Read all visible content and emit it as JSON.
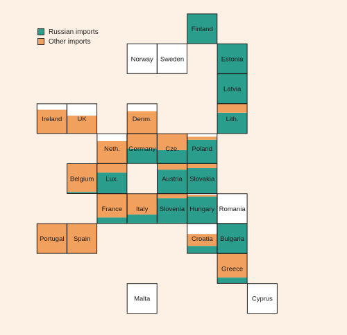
{
  "colors": {
    "russian": "#2a9d8c",
    "other": "#f2a05e",
    "none": "#ffffff",
    "border": "#1f1f1f",
    "background": "#fdf1e5"
  },
  "legend": [
    {
      "label": "Russian imports",
      "color": "#2a9d8c"
    },
    {
      "label": "Other imports",
      "color": "#f2a05e"
    }
  ],
  "chart_data": {
    "type": "grid tile map (stacked share per country)",
    "series": [
      {
        "name": "Russian imports"
      },
      {
        "name": "Other imports"
      }
    ],
    "tiles": [
      {
        "name": "Finland",
        "col": 6,
        "row": 0,
        "russian": 1.0,
        "other": 0.0
      },
      {
        "name": "Norway",
        "col": 4,
        "row": 1,
        "russian": 0.0,
        "other": 0.0
      },
      {
        "name": "Sweden",
        "col": 5,
        "row": 1,
        "russian": 0.0,
        "other": 0.0
      },
      {
        "name": "Estonia",
        "col": 7,
        "row": 1,
        "russian": 1.0,
        "other": 0.0
      },
      {
        "name": "Latvia",
        "col": 7,
        "row": 2,
        "russian": 1.0,
        "other": 0.0
      },
      {
        "name": "Ireland",
        "col": 1,
        "row": 3,
        "russian": 0.0,
        "other": 0.8
      },
      {
        "name": "UK",
        "col": 2,
        "row": 3,
        "russian": 0.0,
        "other": 0.6
      },
      {
        "name": "Denm.",
        "col": 4,
        "row": 3,
        "russian": 0.0,
        "other": 0.75
      },
      {
        "name": "Lith.",
        "col": 7,
        "row": 3,
        "russian": 0.7,
        "other": 0.3
      },
      {
        "name": "Neth.",
        "col": 3,
        "row": 4,
        "russian": 0.0,
        "other": 0.75
      },
      {
        "name": "Germany",
        "col": 4,
        "row": 4,
        "russian": 0.5,
        "other": 0.5
      },
      {
        "name": "Cze.",
        "col": 5,
        "row": 4,
        "russian": 0.45,
        "other": 0.55
      },
      {
        "name": "Poland",
        "col": 6,
        "row": 4,
        "russian": 0.8,
        "other": 0.1
      },
      {
        "name": "Belgium",
        "col": 2,
        "row": 5,
        "russian": 0.05,
        "other": 0.95
      },
      {
        "name": "Lux.",
        "col": 3,
        "row": 5,
        "russian": 0.7,
        "other": 0.3
      },
      {
        "name": "Austria",
        "col": 5,
        "row": 5,
        "russian": 0.8,
        "other": 0.2
      },
      {
        "name": "Slovakia",
        "col": 6,
        "row": 5,
        "russian": 0.85,
        "other": 0.15
      },
      {
        "name": "France",
        "col": 3,
        "row": 6,
        "russian": 0.2,
        "other": 0.8
      },
      {
        "name": "Italy",
        "col": 4,
        "row": 6,
        "russian": 0.3,
        "other": 0.7
      },
      {
        "name": "Slovenia",
        "col": 5,
        "row": 6,
        "russian": 0.85,
        "other": 0.15
      },
      {
        "name": "Hungary",
        "col": 6,
        "row": 6,
        "russian": 0.9,
        "other": 0.05
      },
      {
        "name": "Romania",
        "col": 7,
        "row": 6,
        "russian": 0.0,
        "other": 0.0
      },
      {
        "name": "Portugal",
        "col": 1,
        "row": 7,
        "russian": 0.0,
        "other": 1.0
      },
      {
        "name": "Spain",
        "col": 2,
        "row": 7,
        "russian": 0.0,
        "other": 1.0
      },
      {
        "name": "Croatia",
        "col": 6,
        "row": 7,
        "russian": 0.25,
        "other": 0.4
      },
      {
        "name": "Bulgaria",
        "col": 7,
        "row": 7,
        "russian": 1.0,
        "other": 0.0
      },
      {
        "name": "Greece",
        "col": 7,
        "row": 8,
        "russian": 0.2,
        "other": 0.8
      },
      {
        "name": "Malta",
        "col": 4,
        "row": 9,
        "russian": 0.0,
        "other": 0.0
      },
      {
        "name": "Cyprus",
        "col": 8,
        "row": 9,
        "russian": 0.0,
        "other": 0.0
      }
    ]
  }
}
